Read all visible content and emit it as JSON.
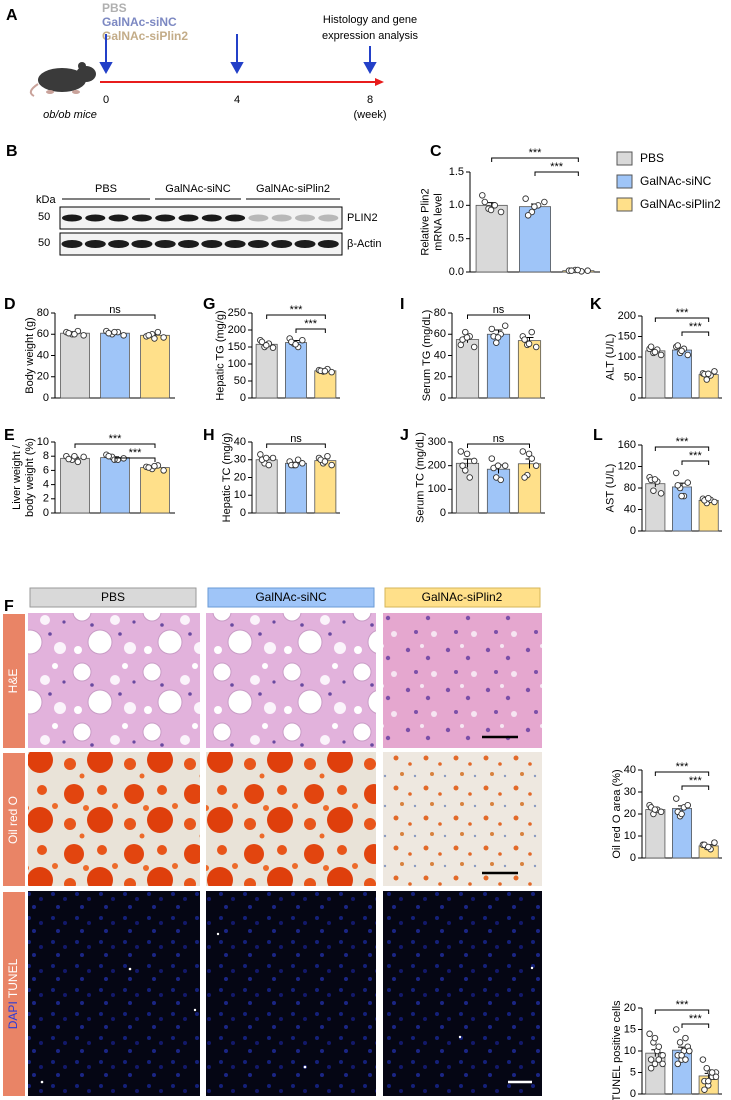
{
  "panel_a": {
    "label": "A",
    "groups": [
      "PBS",
      "GalNAc-siNC",
      "GalNAc-siPlin2"
    ],
    "timepoints": [
      "0",
      "4",
      "8"
    ],
    "unit": "(week)",
    "model": "ob/ob mice",
    "endpoint": [
      "Histology and gene",
      "expression analysis"
    ]
  },
  "panel_b": {
    "label": "B",
    "unit": "kDa",
    "groups": [
      "PBS",
      "GalNAc-siNC",
      "GalNAc-siPlin2"
    ],
    "markers": [
      "50",
      "50"
    ],
    "proteins": [
      "PLIN2",
      "β-Actin"
    ]
  },
  "panel_f": {
    "label": "F",
    "columns": [
      "PBS",
      "GalNAc-siNC",
      "GalNAc-siPlin2"
    ],
    "rows": [
      "H&E",
      "Oil red O"
    ],
    "tunel_row": [
      "DAPI",
      "TUNEL"
    ]
  },
  "chart_data": [
    {
      "type": "bar",
      "panel": "C",
      "ylabel": [
        "Relative Plin2",
        "mRNA level"
      ],
      "ylim": [
        0,
        1.5
      ],
      "yticks": [
        {
          "value": 0,
          "label": "0.0"
        },
        {
          "value": 0.5,
          "label": "0.5"
        },
        {
          "value": 1,
          "label": "1.0"
        },
        {
          "value": 1.5,
          "label": "1.5"
        }
      ],
      "legend": [
        "PBS",
        "GalNAc-siNC",
        "GalNAc-siPlin2"
      ],
      "colors": [
        "#d9d9d9",
        "#9fc5f8",
        "#ffe08a"
      ],
      "values": [
        1.0,
        0.98,
        0.02
      ],
      "errors": [
        0.04,
        0.04,
        0.003
      ],
      "points": [
        [
          1.15,
          0.95,
          1.0,
          0.9,
          1.05,
          0.93
        ],
        [
          1.1,
          0.9,
          1.0,
          1.05,
          0.85,
          0.98
        ],
        [
          0.02,
          0.03,
          0.01,
          0.02,
          0.02,
          0.03
        ]
      ],
      "annotations": [
        "***",
        "***"
      ]
    },
    {
      "type": "bar",
      "panel": "D",
      "ylabel": [
        "Body weight (g)"
      ],
      "ylim": [
        0,
        80
      ],
      "yticks": [
        0,
        20,
        40,
        60,
        80
      ],
      "colors": [
        "#d9d9d9",
        "#9fc5f8",
        "#ffe08a"
      ],
      "values": [
        61,
        61,
        59
      ],
      "errors": [
        0.8,
        0.7,
        0.9
      ],
      "points": [
        [
          62,
          60,
          63,
          59,
          61,
          60
        ],
        [
          63,
          60,
          62,
          59,
          61,
          62
        ],
        [
          58,
          60,
          62,
          57,
          59,
          56
        ]
      ],
      "annotations": [
        "ns"
      ]
    },
    {
      "type": "bar",
      "panel": "G",
      "ylabel": [
        "Hepatic TG (mg/g)"
      ],
      "ylim": [
        0,
        250
      ],
      "yticks": [
        0,
        50,
        100,
        150,
        200,
        250
      ],
      "colors": [
        "#d9d9d9",
        "#9fc5f8",
        "#ffe08a"
      ],
      "values": [
        158,
        163,
        80
      ],
      "errors": [
        5,
        6,
        2
      ],
      "points": [
        [
          170,
          150,
          160,
          148,
          165,
          155
        ],
        [
          175,
          160,
          150,
          170,
          165,
          158
        ],
        [
          82,
          78,
          85,
          76,
          80,
          79
        ]
      ],
      "annotations": [
        "***",
        "***"
      ]
    },
    {
      "type": "bar",
      "panel": "I",
      "ylabel": [
        "Serum TG (mg/dL)"
      ],
      "ylim": [
        0,
        80
      ],
      "yticks": [
        0,
        20,
        40,
        60,
        80
      ],
      "colors": [
        "#d9d9d9",
        "#9fc5f8",
        "#ffe08a"
      ],
      "values": [
        55,
        60,
        54
      ],
      "errors": [
        3,
        4,
        3
      ],
      "points": [
        [
          50,
          62,
          58,
          48,
          55,
          57
        ],
        [
          65,
          52,
          60,
          68,
          58,
          57
        ],
        [
          58,
          50,
          62,
          48,
          55,
          51
        ]
      ],
      "annotations": [
        "ns"
      ]
    },
    {
      "type": "bar",
      "panel": "K",
      "ylabel": [
        "ALT (U/L)"
      ],
      "ylim": [
        0,
        200
      ],
      "yticks": [
        0,
        50,
        100,
        150,
        200
      ],
      "colors": [
        "#d9d9d9",
        "#9fc5f8",
        "#ffe08a"
      ],
      "values": [
        115,
        117,
        57
      ],
      "errors": [
        4,
        5,
        4
      ],
      "points": [
        [
          120,
          110,
          118,
          105,
          125,
          112
        ],
        [
          125,
          110,
          120,
          105,
          128,
          115
        ],
        [
          60,
          45,
          55,
          65,
          58,
          59
        ]
      ],
      "annotations": [
        "***",
        "***"
      ]
    },
    {
      "type": "bar",
      "panel": "E",
      "ylabel": [
        "Liver weight /",
        "body weight (%)"
      ],
      "ylim": [
        0,
        10
      ],
      "yticks": [
        0,
        2,
        4,
        6,
        8,
        10
      ],
      "colors": [
        "#d9d9d9",
        "#9fc5f8",
        "#ffe08a"
      ],
      "values": [
        7.7,
        7.8,
        6.4
      ],
      "errors": [
        0.15,
        0.12,
        0.1
      ],
      "points": [
        [
          8.0,
          7.5,
          7.2,
          7.9,
          7.6,
          8.0
        ],
        [
          8.2,
          7.9,
          7.5,
          7.7,
          8.0,
          7.5
        ],
        [
          6.5,
          6.2,
          6.7,
          6.0,
          6.4,
          6.6
        ]
      ],
      "annotations": [
        "***",
        "***"
      ]
    },
    {
      "type": "bar",
      "panel": "H",
      "ylabel": [
        "Hepatic TC (mg/g)"
      ],
      "ylim": [
        0,
        40
      ],
      "yticks": [
        0,
        10,
        20,
        30,
        40
      ],
      "colors": [
        "#d9d9d9",
        "#9fc5f8",
        "#ffe08a"
      ],
      "values": [
        30,
        28,
        29.5
      ],
      "errors": [
        1.2,
        0.6,
        1
      ],
      "points": [
        [
          33,
          28,
          27,
          31,
          30,
          31
        ],
        [
          29,
          27,
          30,
          28,
          27,
          27
        ],
        [
          31,
          28,
          32,
          27,
          30,
          29
        ]
      ],
      "annotations": [
        "ns"
      ]
    },
    {
      "type": "bar",
      "panel": "J",
      "ylabel": [
        "Serum TC (mg/dL)"
      ],
      "ylim": [
        0,
        300
      ],
      "yticks": [
        0,
        100,
        200,
        300
      ],
      "colors": [
        "#d9d9d9",
        "#9fc5f8",
        "#ffe08a"
      ],
      "values": [
        210,
        185,
        208
      ],
      "errors": [
        18,
        18,
        20
      ],
      "points": [
        [
          260,
          180,
          150,
          220,
          200,
          250
        ],
        [
          230,
          150,
          140,
          200,
          190,
          200
        ],
        [
          260,
          160,
          230,
          200,
          150,
          250
        ]
      ],
      "annotations": [
        "ns"
      ]
    },
    {
      "type": "bar",
      "panel": "L",
      "ylabel": [
        "AST (U/L)"
      ],
      "ylim": [
        0,
        160
      ],
      "yticks": [
        0,
        40,
        80,
        120,
        160
      ],
      "colors": [
        "#d9d9d9",
        "#9fc5f8",
        "#ffe08a"
      ],
      "values": [
        88,
        82,
        57
      ],
      "errors": [
        6,
        7,
        2
      ],
      "points": [
        [
          100,
          75,
          92,
          70,
          95,
          96
        ],
        [
          108,
          80,
          65,
          90,
          85,
          65
        ],
        [
          60,
          52,
          58,
          54,
          57,
          61
        ]
      ],
      "annotations": [
        "***",
        "***"
      ]
    },
    {
      "type": "bar",
      "ylabel": [
        "Oil red O area (%)"
      ],
      "ylim": [
        0,
        40
      ],
      "yticks": [
        0,
        10,
        20,
        30,
        40
      ],
      "colors": [
        "#d9d9d9",
        "#9fc5f8",
        "#ffe08a"
      ],
      "values": [
        22,
        22.5,
        5.5
      ],
      "errors": [
        0.8,
        1.2,
        0.5
      ],
      "points": [
        [
          24,
          20,
          22,
          21,
          23,
          22
        ],
        [
          27,
          19,
          23,
          24,
          21,
          20
        ],
        [
          6,
          5,
          4,
          7,
          6,
          5
        ]
      ],
      "annotations": [
        "***",
        "***"
      ]
    },
    {
      "type": "bar",
      "ylabel": [
        "TUNEL positive cells"
      ],
      "ylim": [
        0,
        20
      ],
      "yticks": [
        0,
        5,
        10,
        15,
        20
      ],
      "colors": [
        "#d9d9d9",
        "#9fc5f8",
        "#ffe08a"
      ],
      "values": [
        9.5,
        10.2,
        4.2
      ],
      "errors": [
        0.8,
        0.7,
        0.6
      ],
      "points": [
        [
          14,
          12,
          10,
          9,
          8,
          7,
          11,
          9,
          6,
          13,
          8,
          7
        ],
        [
          15,
          12,
          10,
          11,
          9,
          8,
          13,
          10,
          7,
          9,
          8,
          10
        ],
        [
          8,
          6,
          5,
          4,
          3,
          2,
          4,
          5,
          1,
          3,
          5,
          4
        ]
      ],
      "annotations": [
        "***",
        "***"
      ]
    }
  ]
}
